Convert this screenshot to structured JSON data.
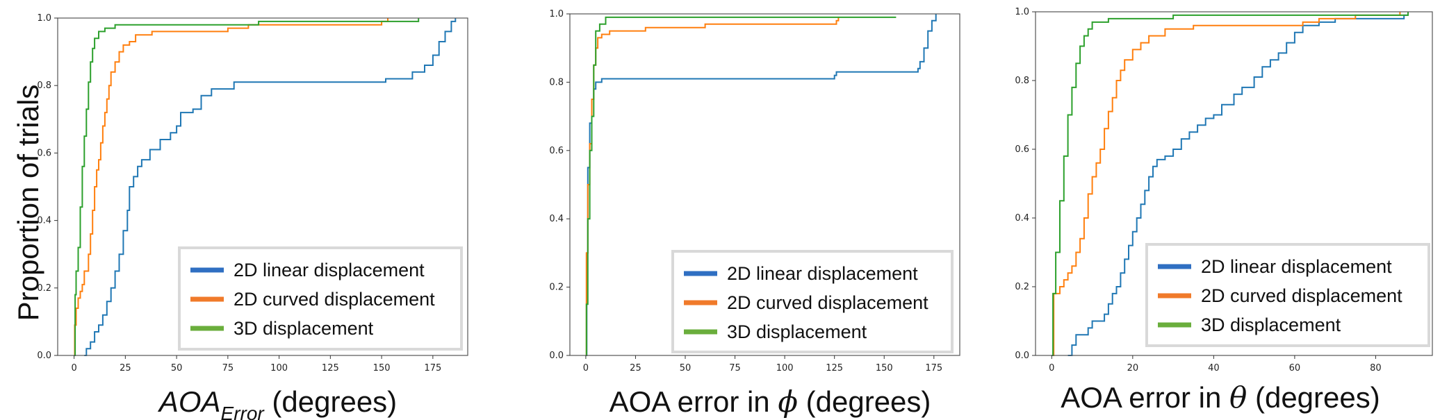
{
  "figure": {
    "ylabel": "Proportion of trials",
    "colors": {
      "blue": "#1f77b4",
      "orange": "#ff7f0e",
      "green": "#2ca02c"
    },
    "legend_swatch_colors": {
      "blue": "#2f6fc2",
      "orange": "#f07a2a",
      "green": "#6aae3c"
    }
  },
  "chart_data": [
    {
      "type": "line",
      "subtype": "cdf-step",
      "xlabel_main": "AOA",
      "xlabel_sub": "Error",
      "xlabel_rest": " (degrees)",
      "xlim": [
        -8,
        192
      ],
      "ylim": [
        0,
        1
      ],
      "xticks": [
        "0",
        "25",
        "50",
        "75",
        "100",
        "125",
        "150",
        "175"
      ],
      "yticks": [
        "0.0",
        "0.2",
        "0.4",
        "0.6",
        "0.8",
        "1.0"
      ],
      "legend": {
        "placement": "lower-right",
        "entries": [
          "2D linear displacement",
          "2D curved displacement",
          "3D displacement"
        ]
      },
      "series": [
        {
          "name": "2D linear displacement",
          "color": "blue",
          "points": [
            [
              5,
              0
            ],
            [
              6,
              0.02
            ],
            [
              8,
              0.04
            ],
            [
              10,
              0.07
            ],
            [
              12,
              0.09
            ],
            [
              14,
              0.12
            ],
            [
              16,
              0.16
            ],
            [
              18,
              0.2
            ],
            [
              20,
              0.25
            ],
            [
              22,
              0.3
            ],
            [
              24,
              0.37
            ],
            [
              26,
              0.43
            ],
            [
              27,
              0.5
            ],
            [
              29,
              0.53
            ],
            [
              31,
              0.56
            ],
            [
              33,
              0.58
            ],
            [
              37,
              0.61
            ],
            [
              42,
              0.64
            ],
            [
              47,
              0.66
            ],
            [
              50,
              0.68
            ],
            [
              52,
              0.72
            ],
            [
              58,
              0.73
            ],
            [
              62,
              0.77
            ],
            [
              67,
              0.79
            ],
            [
              78,
              0.81
            ],
            [
              152,
              0.82
            ],
            [
              165,
              0.84
            ],
            [
              171,
              0.86
            ],
            [
              175,
              0.89
            ],
            [
              178,
              0.93
            ],
            [
              181,
              0.96
            ],
            [
              184,
              0.99
            ],
            [
              186,
              1.0
            ]
          ]
        },
        {
          "name": "2D curved displacement",
          "color": "orange",
          "points": [
            [
              0,
              0
            ],
            [
              0.3,
              0.09
            ],
            [
              1,
              0.14
            ],
            [
              2,
              0.17
            ],
            [
              3,
              0.19
            ],
            [
              4,
              0.21
            ],
            [
              5,
              0.25
            ],
            [
              7,
              0.3
            ],
            [
              8,
              0.36
            ],
            [
              9,
              0.43
            ],
            [
              10,
              0.5
            ],
            [
              11,
              0.55
            ],
            [
              12,
              0.58
            ],
            [
              13,
              0.63
            ],
            [
              14,
              0.68
            ],
            [
              15,
              0.72
            ],
            [
              16,
              0.76
            ],
            [
              17,
              0.8
            ],
            [
              18,
              0.84
            ],
            [
              20,
              0.87
            ],
            [
              22,
              0.9
            ],
            [
              24,
              0.92
            ],
            [
              27,
              0.93
            ],
            [
              30,
              0.95
            ],
            [
              38,
              0.96
            ],
            [
              75,
              0.97
            ],
            [
              85,
              0.98
            ],
            [
              150,
              0.99
            ],
            [
              153,
              1.0
            ]
          ]
        },
        {
          "name": "3D displacement",
          "color": "green",
          "points": [
            [
              0,
              0
            ],
            [
              0.5,
              0.18
            ],
            [
              1,
              0.25
            ],
            [
              2,
              0.32
            ],
            [
              3,
              0.44
            ],
            [
              4,
              0.56
            ],
            [
              5,
              0.65
            ],
            [
              6,
              0.73
            ],
            [
              7,
              0.81
            ],
            [
              8,
              0.87
            ],
            [
              9,
              0.91
            ],
            [
              10,
              0.94
            ],
            [
              12,
              0.96
            ],
            [
              15,
              0.97
            ],
            [
              20,
              0.98
            ],
            [
              90,
              0.99
            ],
            [
              168,
              1.0
            ]
          ]
        }
      ]
    },
    {
      "type": "line",
      "subtype": "cdf-step",
      "xlabel_main": "AOA error in ",
      "xlabel_symbol": "ϕ",
      "xlabel_rest": " (degrees)",
      "xlim": [
        -8,
        188
      ],
      "ylim": [
        0,
        1
      ],
      "xticks": [
        "0",
        "25",
        "50",
        "75",
        "100",
        "125",
        "150",
        "175"
      ],
      "yticks": [
        "0.0",
        "0.2",
        "0.4",
        "0.6",
        "0.8",
        "1.0"
      ],
      "legend": {
        "placement": "lower-right",
        "entries": [
          "2D linear displacement",
          "2D curved displacement",
          "3D displacement"
        ]
      },
      "series": [
        {
          "name": "2D linear displacement",
          "color": "blue",
          "points": [
            [
              0,
              0
            ],
            [
              0.5,
              0.3
            ],
            [
              1,
              0.55
            ],
            [
              2,
              0.68
            ],
            [
              3,
              0.75
            ],
            [
              4,
              0.78
            ],
            [
              5,
              0.8
            ],
            [
              8,
              0.81
            ],
            [
              125,
              0.82
            ],
            [
              126,
              0.83
            ],
            [
              167,
              0.84
            ],
            [
              168,
              0.86
            ],
            [
              170,
              0.9
            ],
            [
              172,
              0.95
            ],
            [
              174,
              0.98
            ],
            [
              176,
              1.0
            ]
          ]
        },
        {
          "name": "2D curved displacement",
          "color": "orange",
          "points": [
            [
              0,
              0
            ],
            [
              0.3,
              0.3
            ],
            [
              1,
              0.5
            ],
            [
              2,
              0.62
            ],
            [
              3,
              0.75
            ],
            [
              4,
              0.85
            ],
            [
              5,
              0.9
            ],
            [
              6,
              0.93
            ],
            [
              8,
              0.94
            ],
            [
              12,
              0.95
            ],
            [
              30,
              0.96
            ],
            [
              60,
              0.97
            ],
            [
              126,
              0.98
            ],
            [
              127,
              0.99
            ]
          ]
        },
        {
          "name": "3D displacement",
          "color": "green",
          "points": [
            [
              0,
              0
            ],
            [
              0.3,
              0.15
            ],
            [
              1,
              0.4
            ],
            [
              2,
              0.6
            ],
            [
              3,
              0.7
            ],
            [
              4,
              0.85
            ],
            [
              5,
              0.95
            ],
            [
              7,
              0.97
            ],
            [
              10,
              0.99
            ],
            [
              156,
              0.99
            ]
          ]
        }
      ]
    },
    {
      "type": "line",
      "subtype": "cdf-step",
      "xlabel_main": "AOA error in ",
      "xlabel_symbol": "θ",
      "xlabel_rest": " (degrees)",
      "xlim": [
        -4,
        94
      ],
      "ylim": [
        0,
        1
      ],
      "xticks": [
        "0",
        "20",
        "40",
        "60",
        "80"
      ],
      "yticks": [
        "0.0",
        "0.2",
        "0.4",
        "0.6",
        "0.8",
        "1.0"
      ],
      "legend": {
        "placement": "lower-right",
        "entries": [
          "2D linear displacement",
          "2D curved displacement",
          "3D displacement"
        ]
      },
      "series": [
        {
          "name": "2D linear displacement",
          "color": "blue",
          "points": [
            [
              4,
              0
            ],
            [
              5,
              0.03
            ],
            [
              6,
              0.06
            ],
            [
              9,
              0.08
            ],
            [
              10,
              0.1
            ],
            [
              13,
              0.12
            ],
            [
              14,
              0.15
            ],
            [
              15,
              0.18
            ],
            [
              16,
              0.2
            ],
            [
              17,
              0.24
            ],
            [
              18,
              0.28
            ],
            [
              19,
              0.32
            ],
            [
              20,
              0.36
            ],
            [
              21,
              0.4
            ],
            [
              22,
              0.44
            ],
            [
              23,
              0.48
            ],
            [
              24,
              0.52
            ],
            [
              25,
              0.55
            ],
            [
              26,
              0.57
            ],
            [
              28,
              0.58
            ],
            [
              30,
              0.6
            ],
            [
              32,
              0.63
            ],
            [
              34,
              0.65
            ],
            [
              36,
              0.67
            ],
            [
              38,
              0.69
            ],
            [
              40,
              0.7
            ],
            [
              42,
              0.73
            ],
            [
              45,
              0.76
            ],
            [
              47,
              0.78
            ],
            [
              50,
              0.81
            ],
            [
              52,
              0.84
            ],
            [
              54,
              0.86
            ],
            [
              56,
              0.88
            ],
            [
              58,
              0.91
            ],
            [
              60,
              0.94
            ],
            [
              62,
              0.96
            ],
            [
              66,
              0.97
            ],
            [
              70,
              0.98
            ],
            [
              87,
              0.99
            ],
            [
              88,
              1.0
            ]
          ]
        },
        {
          "name": "2D curved displacement",
          "color": "orange",
          "points": [
            [
              0,
              0
            ],
            [
              0.5,
              0.18
            ],
            [
              2,
              0.2
            ],
            [
              3,
              0.22
            ],
            [
              4,
              0.24
            ],
            [
              5,
              0.26
            ],
            [
              6,
              0.3
            ],
            [
              7,
              0.34
            ],
            [
              8,
              0.4
            ],
            [
              9,
              0.47
            ],
            [
              10,
              0.52
            ],
            [
              11,
              0.56
            ],
            [
              12,
              0.6
            ],
            [
              13,
              0.66
            ],
            [
              14,
              0.71
            ],
            [
              15,
              0.75
            ],
            [
              16,
              0.8
            ],
            [
              17,
              0.83
            ],
            [
              18,
              0.86
            ],
            [
              20,
              0.89
            ],
            [
              22,
              0.91
            ],
            [
              24,
              0.93
            ],
            [
              28,
              0.95
            ],
            [
              35,
              0.96
            ],
            [
              62,
              0.97
            ],
            [
              66,
              0.98
            ],
            [
              75,
              0.99
            ],
            [
              86,
              1.0
            ]
          ]
        },
        {
          "name": "3D displacement",
          "color": "green",
          "points": [
            [
              0,
              0
            ],
            [
              0.3,
              0.18
            ],
            [
              1,
              0.3
            ],
            [
              2,
              0.45
            ],
            [
              3,
              0.58
            ],
            [
              4,
              0.7
            ],
            [
              5,
              0.78
            ],
            [
              6,
              0.85
            ],
            [
              7,
              0.9
            ],
            [
              8,
              0.93
            ],
            [
              9,
              0.95
            ],
            [
              10,
              0.97
            ],
            [
              14,
              0.98
            ],
            [
              30,
              0.99
            ],
            [
              88,
              1.0
            ]
          ]
        }
      ]
    }
  ]
}
